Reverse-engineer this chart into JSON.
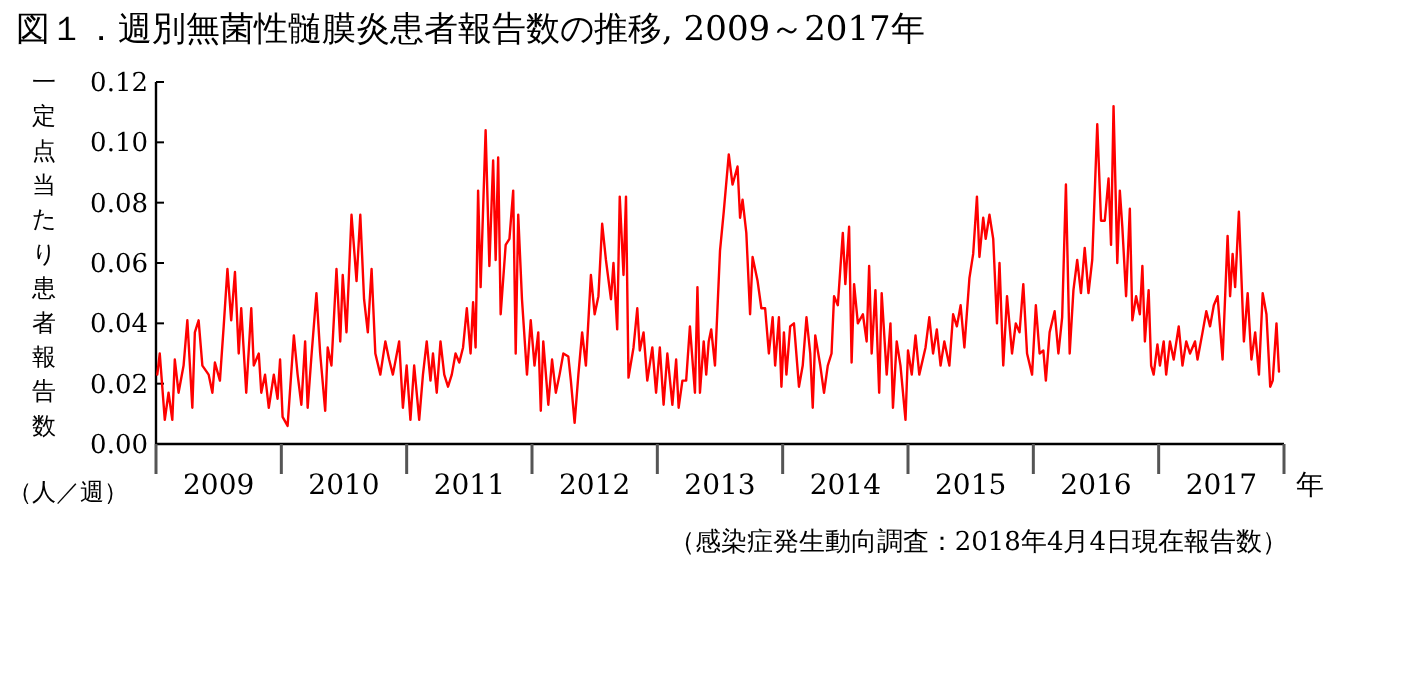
{
  "chart_data": {
    "type": "line",
    "title": "図１．週別無菌性髄膜炎患者報告数の推移, 2009～2017年",
    "ylabel": "一定点当たり患者報告数",
    "xlabel": "年",
    "annotations": [
      "（人／週）",
      "（感染症発生動向調査：2018年4月4日現在報告数）"
    ],
    "xlim": [
      2009,
      2018
    ],
    "xticks": [
      {
        "value": 2009,
        "label": null
      },
      {
        "value": 2009.5,
        "label": "2009"
      },
      {
        "value": 2010,
        "label": null
      },
      {
        "value": 2010.5,
        "label": "2010"
      },
      {
        "value": 2011,
        "label": null
      },
      {
        "value": 2011.5,
        "label": "2011"
      },
      {
        "value": 2012,
        "label": null
      },
      {
        "value": 2012.5,
        "label": "2012"
      },
      {
        "value": 2013,
        "label": null
      },
      {
        "value": 2013.5,
        "label": "2013"
      },
      {
        "value": 2014,
        "label": null
      },
      {
        "value": 2014.5,
        "label": "2014"
      },
      {
        "value": 2015,
        "label": null
      },
      {
        "value": 2015.5,
        "label": "2015"
      },
      {
        "value": 2016,
        "label": null
      },
      {
        "value": 2016.5,
        "label": "2016"
      },
      {
        "value": 2017,
        "label": null
      },
      {
        "value": 2017.5,
        "label": "2017"
      },
      {
        "value": 2018,
        "label": null
      }
    ],
    "ylim": [
      0,
      0.12
    ],
    "yticks": [
      {
        "value": 0,
        "label": "0.00"
      },
      {
        "value": 0.02,
        "label": "0.02"
      },
      {
        "value": 0.04,
        "label": "0.04"
      },
      {
        "value": 0.06,
        "label": "0.06"
      },
      {
        "value": 0.08,
        "label": "0.08"
      },
      {
        "value": 0.1,
        "label": "0.10"
      },
      {
        "value": 0.12,
        "label": "0.12"
      }
    ],
    "line_style": "solid",
    "series": [
      {
        "color": "#ff0000",
        "x": [
          2009.01,
          2009.03,
          2009.07,
          2009.1,
          2009.13,
          2009.15,
          2009.18,
          2009.22,
          2009.25,
          2009.29,
          2009.31,
          2009.34,
          2009.37,
          2009.42,
          2009.45,
          2009.47,
          2009.51,
          2009.54,
          2009.57,
          2009.6,
          2009.63,
          2009.66,
          2009.68,
          2009.72,
          2009.76,
          2009.78,
          2009.82,
          2009.84,
          2009.87,
          2009.9,
          2009.94,
          2009.97,
          2009.99,
          2010.01,
          2010.05,
          2010.1,
          2010.13,
          2010.16,
          2010.19,
          2010.21,
          2010.24,
          2010.28,
          2010.31,
          2010.35,
          2010.37,
          2010.4,
          2010.44,
          2010.47,
          2010.49,
          2010.52,
          2010.56,
          2010.6,
          2010.63,
          2010.66,
          2010.69,
          2010.72,
          2010.75,
          2010.79,
          2010.83,
          2010.86,
          2010.89,
          2010.94,
          2010.97,
          2011.0,
          2011.03,
          2011.06,
          2011.1,
          2011.13,
          2011.16,
          2011.19,
          2011.21,
          2011.24,
          2011.27,
          2011.3,
          2011.33,
          2011.36,
          2011.39,
          2011.42,
          2011.45,
          2011.48,
          2011.51,
          2011.53,
          2011.55,
          2011.57,
          2011.59,
          2011.63,
          2011.66,
          2011.69,
          2011.71,
          2011.73,
          2011.75,
          2011.79,
          2011.82,
          2011.85,
          2011.87,
          2011.89,
          2011.92,
          2011.96,
          2011.99,
          2012.02,
          2012.05,
          2012.07,
          2012.09,
          2012.13,
          2012.16,
          2012.19,
          2012.22,
          2012.25,
          2012.29,
          2012.31,
          2012.34,
          2012.37,
          2012.4,
          2012.43,
          2012.47,
          2012.5,
          2012.53,
          2012.56,
          2012.59,
          2012.63,
          2012.65,
          2012.68,
          2012.7,
          2012.73,
          2012.75,
          2012.77,
          2012.81,
          2012.84,
          2012.86,
          2012.89,
          2012.92,
          2012.96,
          2012.99,
          2013.02,
          2013.05,
          2013.08,
          2013.12,
          2013.15,
          2013.17,
          2013.2,
          2013.23,
          2013.26,
          2013.3,
          2013.32,
          2013.34,
          2013.37,
          2013.39,
          2013.41,
          2013.43,
          2013.46,
          2013.5,
          2013.53,
          2013.57,
          2013.6,
          2013.64,
          2013.66,
          2013.68,
          2013.71,
          2013.74,
          2013.76,
          2013.8,
          2013.83,
          2013.86,
          2013.89,
          2013.92,
          2013.94,
          2013.97,
          2013.99,
          2014.01,
          2014.03,
          2014.06,
          2014.09,
          2014.13,
          2014.16,
          2014.19,
          2014.22,
          2014.24,
          2014.26,
          2014.3,
          2014.33,
          2014.36,
          2014.39,
          2014.41,
          2014.44,
          2014.48,
          2014.5,
          2014.53,
          2014.55,
          2014.57,
          2014.6,
          2014.64,
          2014.67,
          2014.69,
          2014.71,
          2014.74,
          2014.77,
          2014.79,
          2014.83,
          2014.86,
          2014.88,
          2014.91,
          2014.94,
          2014.98,
          2015.0,
          2015.03,
          2015.06,
          2015.09,
          2015.14,
          2015.17,
          2015.2,
          2015.23,
          2015.26,
          2015.29,
          2015.33,
          2015.36,
          2015.39,
          2015.42,
          2015.45,
          2015.49,
          2015.52,
          2015.55,
          2015.57,
          2015.6,
          2015.62,
          2015.65,
          2015.68,
          2015.71,
          2015.73,
          2015.76,
          2015.79,
          2015.83,
          2015.86,
          2015.89,
          2015.92,
          2015.95,
          2015.99,
          2016.02,
          2016.05,
          2016.08,
          2016.1,
          2016.13,
          2016.17,
          2016.2,
          2016.23,
          2016.26,
          2016.29,
          2016.32,
          2016.35,
          2016.38,
          2016.41,
          2016.44,
          2016.47,
          2016.51,
          2016.54,
          2016.57,
          2016.6,
          2016.62,
          2016.64,
          2016.67,
          2016.69,
          2016.71,
          2016.74,
          2016.77,
          2016.79,
          2016.82,
          2016.85,
          2016.87,
          2016.89,
          2016.92,
          2016.94,
          2016.96,
          2016.99,
          2017.01,
          2017.04,
          2017.06,
          2017.09,
          2017.12,
          2017.16,
          2017.19,
          2017.22,
          2017.25,
          2017.29,
          2017.31,
          2017.35,
          2017.38,
          2017.41,
          2017.44,
          2017.47,
          2017.51,
          2017.55,
          2017.57,
          2017.59,
          2017.61,
          2017.64,
          2017.68,
          2017.71,
          2017.74,
          2017.77,
          2017.8,
          2017.83,
          2017.86,
          2017.89,
          2017.91,
          2017.94,
          2017.96
        ],
        "values": [
          0.023,
          0.03,
          0.008,
          0.017,
          0.008,
          0.028,
          0.017,
          0.026,
          0.041,
          0.012,
          0.037,
          0.041,
          0.026,
          0.023,
          0.017,
          0.027,
          0.021,
          0.039,
          0.058,
          0.041,
          0.057,
          0.03,
          0.045,
          0.017,
          0.045,
          0.026,
          0.03,
          0.017,
          0.023,
          0.012,
          0.023,
          0.015,
          0.028,
          0.009,
          0.006,
          0.036,
          0.023,
          0.013,
          0.034,
          0.012,
          0.029,
          0.05,
          0.03,
          0.011,
          0.032,
          0.026,
          0.058,
          0.034,
          0.056,
          0.037,
          0.076,
          0.054,
          0.076,
          0.048,
          0.037,
          0.058,
          0.03,
          0.023,
          0.034,
          0.028,
          0.023,
          0.034,
          0.012,
          0.026,
          0.008,
          0.026,
          0.008,
          0.023,
          0.034,
          0.021,
          0.03,
          0.017,
          0.034,
          0.023,
          0.019,
          0.023,
          0.03,
          0.027,
          0.032,
          0.045,
          0.03,
          0.047,
          0.032,
          0.084,
          0.052,
          0.104,
          0.059,
          0.094,
          0.061,
          0.095,
          0.043,
          0.066,
          0.068,
          0.084,
          0.03,
          0.076,
          0.048,
          0.023,
          0.041,
          0.026,
          0.037,
          0.011,
          0.034,
          0.013,
          0.028,
          0.017,
          0.023,
          0.03,
          0.029,
          0.021,
          0.007,
          0.023,
          0.037,
          0.026,
          0.056,
          0.043,
          0.049,
          0.073,
          0.061,
          0.048,
          0.06,
          0.038,
          0.082,
          0.056,
          0.082,
          0.022,
          0.032,
          0.045,
          0.031,
          0.037,
          0.021,
          0.032,
          0.017,
          0.032,
          0.013,
          0.03,
          0.013,
          0.028,
          0.012,
          0.021,
          0.021,
          0.039,
          0.017,
          0.052,
          0.017,
          0.034,
          0.023,
          0.034,
          0.038,
          0.026,
          0.064,
          0.077,
          0.096,
          0.086,
          0.092,
          0.075,
          0.081,
          0.07,
          0.043,
          0.062,
          0.054,
          0.045,
          0.045,
          0.03,
          0.042,
          0.026,
          0.042,
          0.019,
          0.037,
          0.023,
          0.039,
          0.04,
          0.019,
          0.026,
          0.042,
          0.03,
          0.012,
          0.036,
          0.026,
          0.017,
          0.026,
          0.03,
          0.049,
          0.046,
          0.07,
          0.053,
          0.072,
          0.027,
          0.053,
          0.04,
          0.043,
          0.034,
          0.059,
          0.03,
          0.051,
          0.017,
          0.05,
          0.023,
          0.04,
          0.012,
          0.034,
          0.026,
          0.008,
          0.031,
          0.023,
          0.036,
          0.023,
          0.032,
          0.042,
          0.03,
          0.038,
          0.026,
          0.034,
          0.026,
          0.043,
          0.039,
          0.046,
          0.032,
          0.055,
          0.063,
          0.082,
          0.062,
          0.075,
          0.068,
          0.076,
          0.068,
          0.04,
          0.06,
          0.026,
          0.049,
          0.03,
          0.04,
          0.037,
          0.053,
          0.03,
          0.023,
          0.046,
          0.03,
          0.031,
          0.021,
          0.037,
          0.044,
          0.03,
          0.042,
          0.086,
          0.03,
          0.051,
          0.061,
          0.05,
          0.065,
          0.05,
          0.061,
          0.106,
          0.074,
          0.074,
          0.088,
          0.066,
          0.112,
          0.06,
          0.084,
          0.072,
          0.049,
          0.078,
          0.041,
          0.049,
          0.043,
          0.059,
          0.034,
          0.051,
          0.026,
          0.023,
          0.033,
          0.026,
          0.034,
          0.023,
          0.034,
          0.028,
          0.039,
          0.026,
          0.034,
          0.03,
          0.034,
          0.028,
          0.037,
          0.044,
          0.039,
          0.046,
          0.049,
          0.028,
          0.069,
          0.049,
          0.063,
          0.052,
          0.077,
          0.034,
          0.05,
          0.028,
          0.037,
          0.023,
          0.05,
          0.043,
          0.019,
          0.021,
          0.04,
          0.024
        ]
      }
    ]
  }
}
